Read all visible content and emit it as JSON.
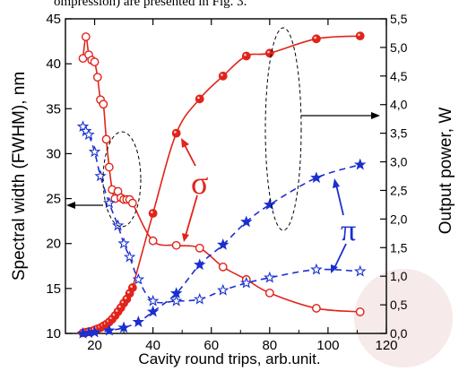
{
  "caption_fragment": "ompression) are presented in Fig. 3.",
  "chart_data": {
    "type": "line",
    "xlabel": "Cavity round trips, arb.unit.",
    "ylabel_left": "Spectral width (FWHM), nm",
    "ylabel_right": "Output power, W",
    "xlim": [
      10,
      120
    ],
    "ylim_left": [
      10,
      45
    ],
    "ylim_right": [
      0.0,
      5.5
    ],
    "x_ticks": [
      "20",
      "40",
      "60",
      "80",
      "100",
      "120"
    ],
    "y_left_ticks": [
      "10",
      "15",
      "20",
      "25",
      "30",
      "35",
      "40",
      "45"
    ],
    "y_right_ticks": [
      "0,0",
      "0,5",
      "1,0",
      "1,5",
      "2,0",
      "2,5",
      "3,0",
      "3,5",
      "4,0",
      "4,5",
      "5,0",
      "5,5"
    ],
    "grid": false,
    "annotations": {
      "sigma": "σ",
      "pi": "π"
    },
    "colors": {
      "sigma": "#e0241b",
      "pi": "#1a2fd0"
    },
    "series": [
      {
        "axis": "right",
        "marker": "circle-filled",
        "line": "solid",
        "color": "#e0241b",
        "x": [
          16,
          17,
          18,
          19,
          20,
          21,
          22,
          23,
          24,
          25,
          26,
          27,
          28,
          29,
          30,
          31,
          32,
          33,
          40,
          48,
          56,
          64,
          72,
          80,
          96,
          111
        ],
        "y": [
          0.01,
          0.02,
          0.03,
          0.04,
          0.06,
          0.08,
          0.1,
          0.13,
          0.16,
          0.2,
          0.25,
          0.31,
          0.38,
          0.45,
          0.53,
          0.6,
          0.7,
          0.8,
          2.1,
          3.5,
          4.1,
          4.5,
          4.85,
          4.9,
          5.15,
          5.2
        ]
      },
      {
        "axis": "left",
        "marker": "circle-open",
        "line": "solid",
        "color": "#e0241b",
        "x": [
          16,
          17,
          18,
          19,
          20,
          21,
          22,
          23,
          24,
          25,
          26,
          27,
          28,
          29,
          30,
          31,
          32,
          33,
          40,
          48,
          56,
          64,
          72,
          80,
          96,
          111
        ],
        "y": [
          40.6,
          43.0,
          41.0,
          40.4,
          40.2,
          38.5,
          36.0,
          35.5,
          31.6,
          28.5,
          26.0,
          25.0,
          25.8,
          25.1,
          24.9,
          24.9,
          24.9,
          24.5,
          20.3,
          19.8,
          19.5,
          17.4,
          16.0,
          14.5,
          12.8,
          12.4
        ]
      },
      {
        "axis": "right",
        "marker": "star-filled",
        "line": "dashed",
        "color": "#1a2fd0",
        "x": [
          16,
          18,
          20,
          25,
          30,
          35,
          40,
          48,
          56,
          64,
          72,
          80,
          96,
          111
        ],
        "y": [
          0.0,
          0.01,
          0.02,
          0.05,
          0.1,
          0.2,
          0.38,
          0.7,
          1.2,
          1.55,
          1.95,
          2.25,
          2.72,
          2.95
        ]
      },
      {
        "axis": "left",
        "marker": "star-open",
        "line": "dashed",
        "color": "#1a2fd0",
        "x": [
          16,
          17,
          18,
          20,
          22,
          25,
          28,
          30,
          32,
          35,
          40,
          48,
          56,
          64,
          72,
          80,
          96,
          111
        ],
        "y": [
          33.0,
          32.5,
          32.1,
          30.2,
          27.5,
          24.5,
          22.0,
          20.0,
          18.5,
          16.0,
          13.6,
          13.6,
          13.8,
          14.8,
          15.6,
          16.2,
          17.1,
          16.9
        ]
      }
    ]
  }
}
